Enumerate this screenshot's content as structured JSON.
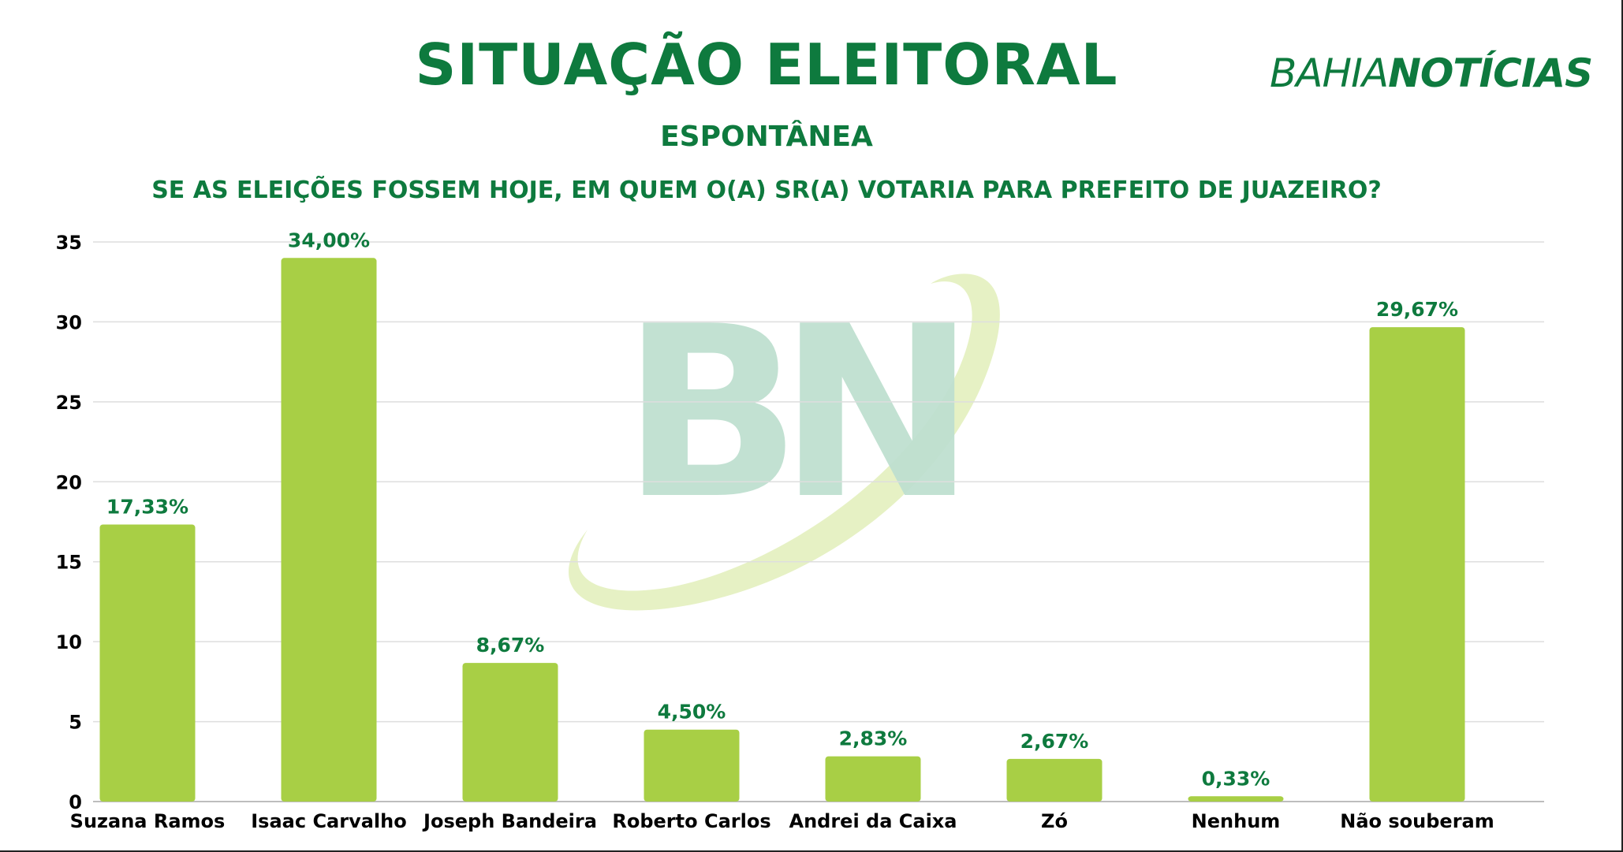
{
  "header": {
    "title": "SITUAÇÃO ELEITORAL",
    "subtitle": "ESPONTÂNEA",
    "question": "SE AS ELEIÇÕES FOSSEM HOJE, EM QUEM O(A) SR(A) VOTARIA PARA PREFEITO DE JUAZEIRO?"
  },
  "logo": {
    "part1": "BAHIA",
    "part2": "NOTÍCIAS",
    "color": "#0e7a3e"
  },
  "watermark": {
    "text": "BN"
  },
  "colors": {
    "bar": "#a8cf45",
    "accent": "#0e7a3e",
    "watermark": "#bfe0d0",
    "swoosh": "#e6f1c4"
  },
  "chart_data": {
    "type": "bar",
    "title": "SITUAÇÃO ELEITORAL",
    "subtitle": "ESPONTÂNEA",
    "categories": [
      "Suzana Ramos",
      "Isaac Carvalho",
      "Joseph Bandeira",
      "Roberto Carlos",
      "Andrei da Caixa",
      "Zó",
      "Nenhum",
      "Não souberam"
    ],
    "values": [
      17.33,
      34.0,
      8.67,
      4.5,
      2.83,
      2.67,
      0.33,
      29.67
    ],
    "data_labels": [
      "17,33%",
      "34,00%",
      "8,67%",
      "4,50%",
      "2,83%",
      "2,67%",
      "0,33%",
      "29,67%"
    ],
    "yticks": [
      0,
      5,
      10,
      15,
      20,
      25,
      30,
      35
    ],
    "ylim": [
      0,
      35
    ],
    "xlabel": "",
    "ylabel": "",
    "grid": true,
    "legend": "none"
  }
}
